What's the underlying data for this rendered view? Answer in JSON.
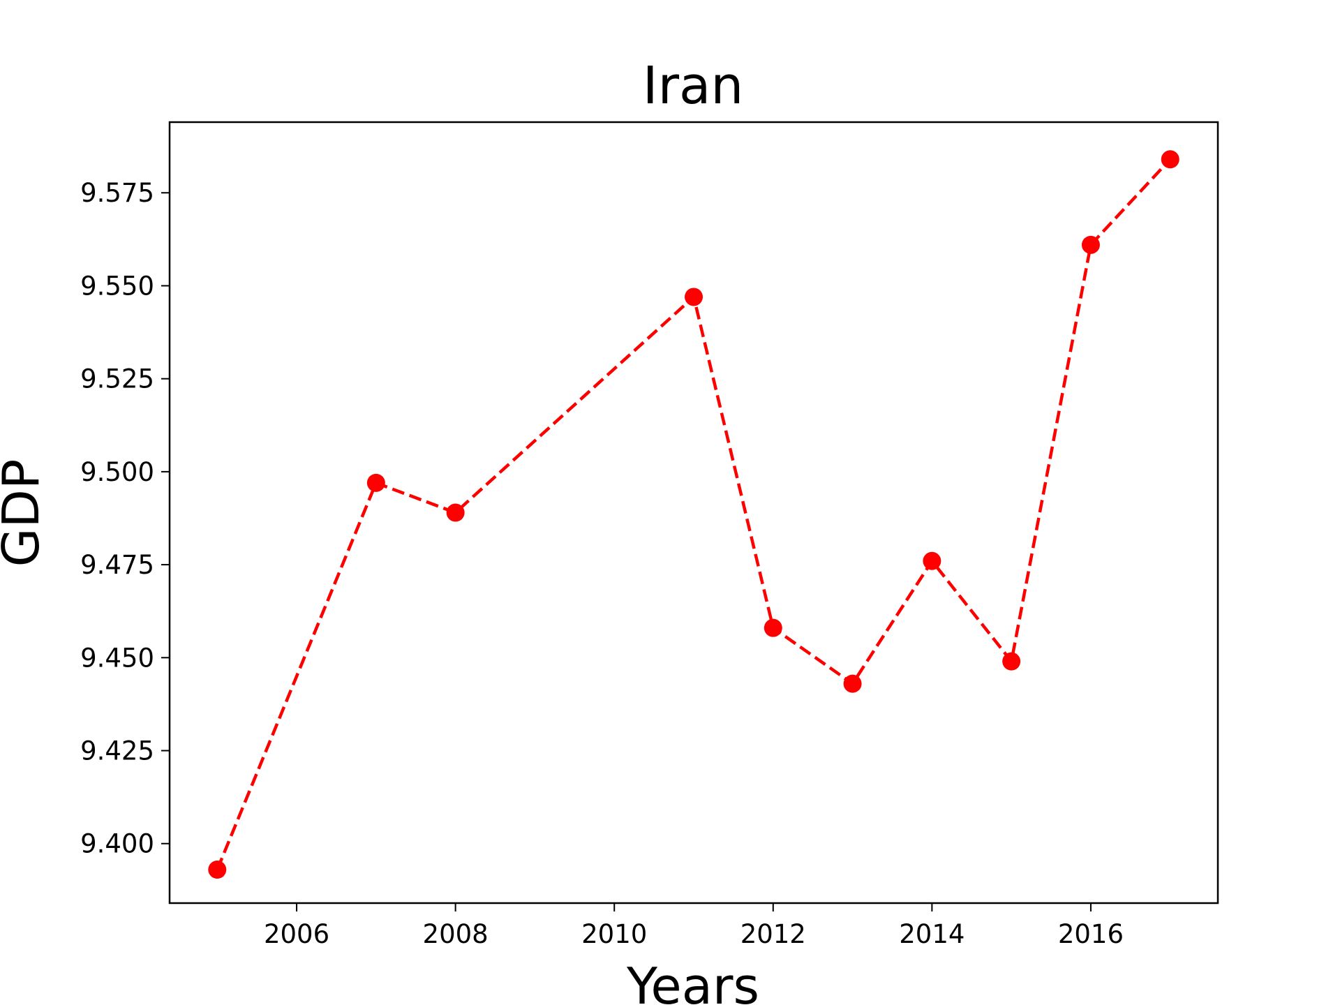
{
  "chart_data": {
    "type": "line",
    "title": "Iran",
    "xlabel": "Years",
    "ylabel": "GDP",
    "x": [
      2005,
      2007,
      2008,
      2011,
      2012,
      2013,
      2014,
      2015,
      2016,
      2017
    ],
    "series": [
      {
        "values": [
          9.393,
          9.497,
          9.489,
          9.547,
          9.458,
          9.443,
          9.476,
          9.449,
          9.561,
          9.584
        ],
        "color": "#ff0000",
        "line_style": "dashed",
        "marker": "circle"
      }
    ],
    "xlim": [
      2004.4,
      2017.6
    ],
    "ylim": [
      9.384,
      9.594
    ],
    "xticks": [
      2006,
      2008,
      2010,
      2012,
      2014,
      2016
    ],
    "xtick_labels": [
      "2006",
      "2008",
      "2010",
      "2012",
      "2014",
      "2016"
    ],
    "yticks": [
      9.4,
      9.425,
      9.45,
      9.475,
      9.5,
      9.525,
      9.55,
      9.575
    ],
    "ytick_labels": [
      "9.400",
      "9.425",
      "9.450",
      "9.475",
      "9.500",
      "9.525",
      "9.550",
      "9.575"
    ],
    "grid": false,
    "legend": "none"
  }
}
